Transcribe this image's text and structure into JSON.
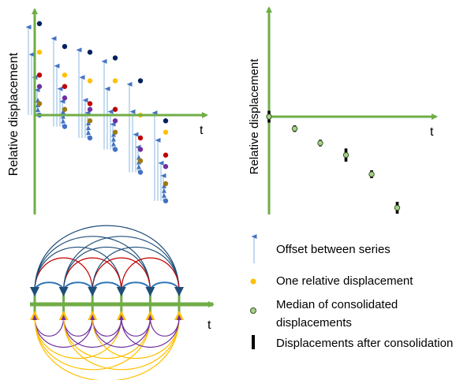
{
  "colors": {
    "axis": "#70ad47",
    "arrow": "#4472c4",
    "arrow_line": "#9dc3e6",
    "displacement_palette": [
      "#002060",
      "#ffc000",
      "#c00000",
      "#7030a0",
      "#9c7b12",
      "#4472c4"
    ],
    "median_fill": "#a9d18e",
    "median_stroke": "#385723",
    "bar": "#000000",
    "link_colors": [
      "#1f4e79",
      "#c00000",
      "#2e75b6",
      "#ffc000",
      "#7030a0"
    ]
  },
  "panels": {
    "raw": {
      "ylabel": "Relative displacement",
      "xlabel": "t"
    },
    "consolidated": {
      "ylabel": "Relative displacement",
      "xlabel": "t"
    },
    "network": {
      "xlabel": "t",
      "node_count": 6
    }
  },
  "legend": {
    "items": [
      {
        "marker": "arrow",
        "label": "Offset between series"
      },
      {
        "marker": "dot",
        "label": "One relative displacement"
      },
      {
        "marker": "median",
        "label": "Median of consolidated displacements"
      },
      {
        "marker": "bar",
        "label": "Displacements after consolidation"
      }
    ]
  },
  "chart_data": [
    {
      "type": "scatter",
      "name": "raw-displacements",
      "xlabel": "t",
      "ylabel": "Relative displacement",
      "description_of_content": null,
      "groups": [
        {
          "t": 0,
          "offset": 0,
          "values": [
            8.0,
            5.5,
            3.5,
            2.5,
            1.0,
            0.0
          ]
        },
        {
          "t": 1,
          "offset": -1,
          "values": [
            7.0,
            4.5,
            3.5,
            2.5,
            1.5,
            0.0
          ]
        },
        {
          "t": 2,
          "offset": -2,
          "values": [
            7.5,
            5.0,
            3.0,
            2.5,
            1.5,
            0.0
          ]
        },
        {
          "t": 3,
          "offset": -3,
          "values": [
            8.0,
            6.0,
            3.5,
            2.5,
            1.5,
            0.0
          ]
        },
        {
          "t": 4,
          "offset": -5,
          "values": [
            8.0,
            5.0,
            3.0,
            2.0,
            1.0,
            0.0
          ]
        },
        {
          "t": 5,
          "offset": -7.5,
          "values": [
            7.0,
            6.0,
            4.0,
            3.0,
            1.5,
            0.0
          ]
        }
      ]
    },
    {
      "type": "scatter",
      "name": "consolidated-displacements",
      "xlabel": "t",
      "ylabel": "Relative displacement",
      "points": [
        {
          "t": 0,
          "median": 0.0,
          "spread": 0.45
        },
        {
          "t": 1,
          "median": -1.0,
          "spread": 0.25
        },
        {
          "t": 2,
          "median": -2.2,
          "spread": 0.25
        },
        {
          "t": 3,
          "median": -3.2,
          "spread": 0.5
        },
        {
          "t": 4,
          "median": -4.8,
          "spread": 0.3
        },
        {
          "t": 5,
          "median": -7.6,
          "spread": 0.45
        }
      ]
    }
  ]
}
